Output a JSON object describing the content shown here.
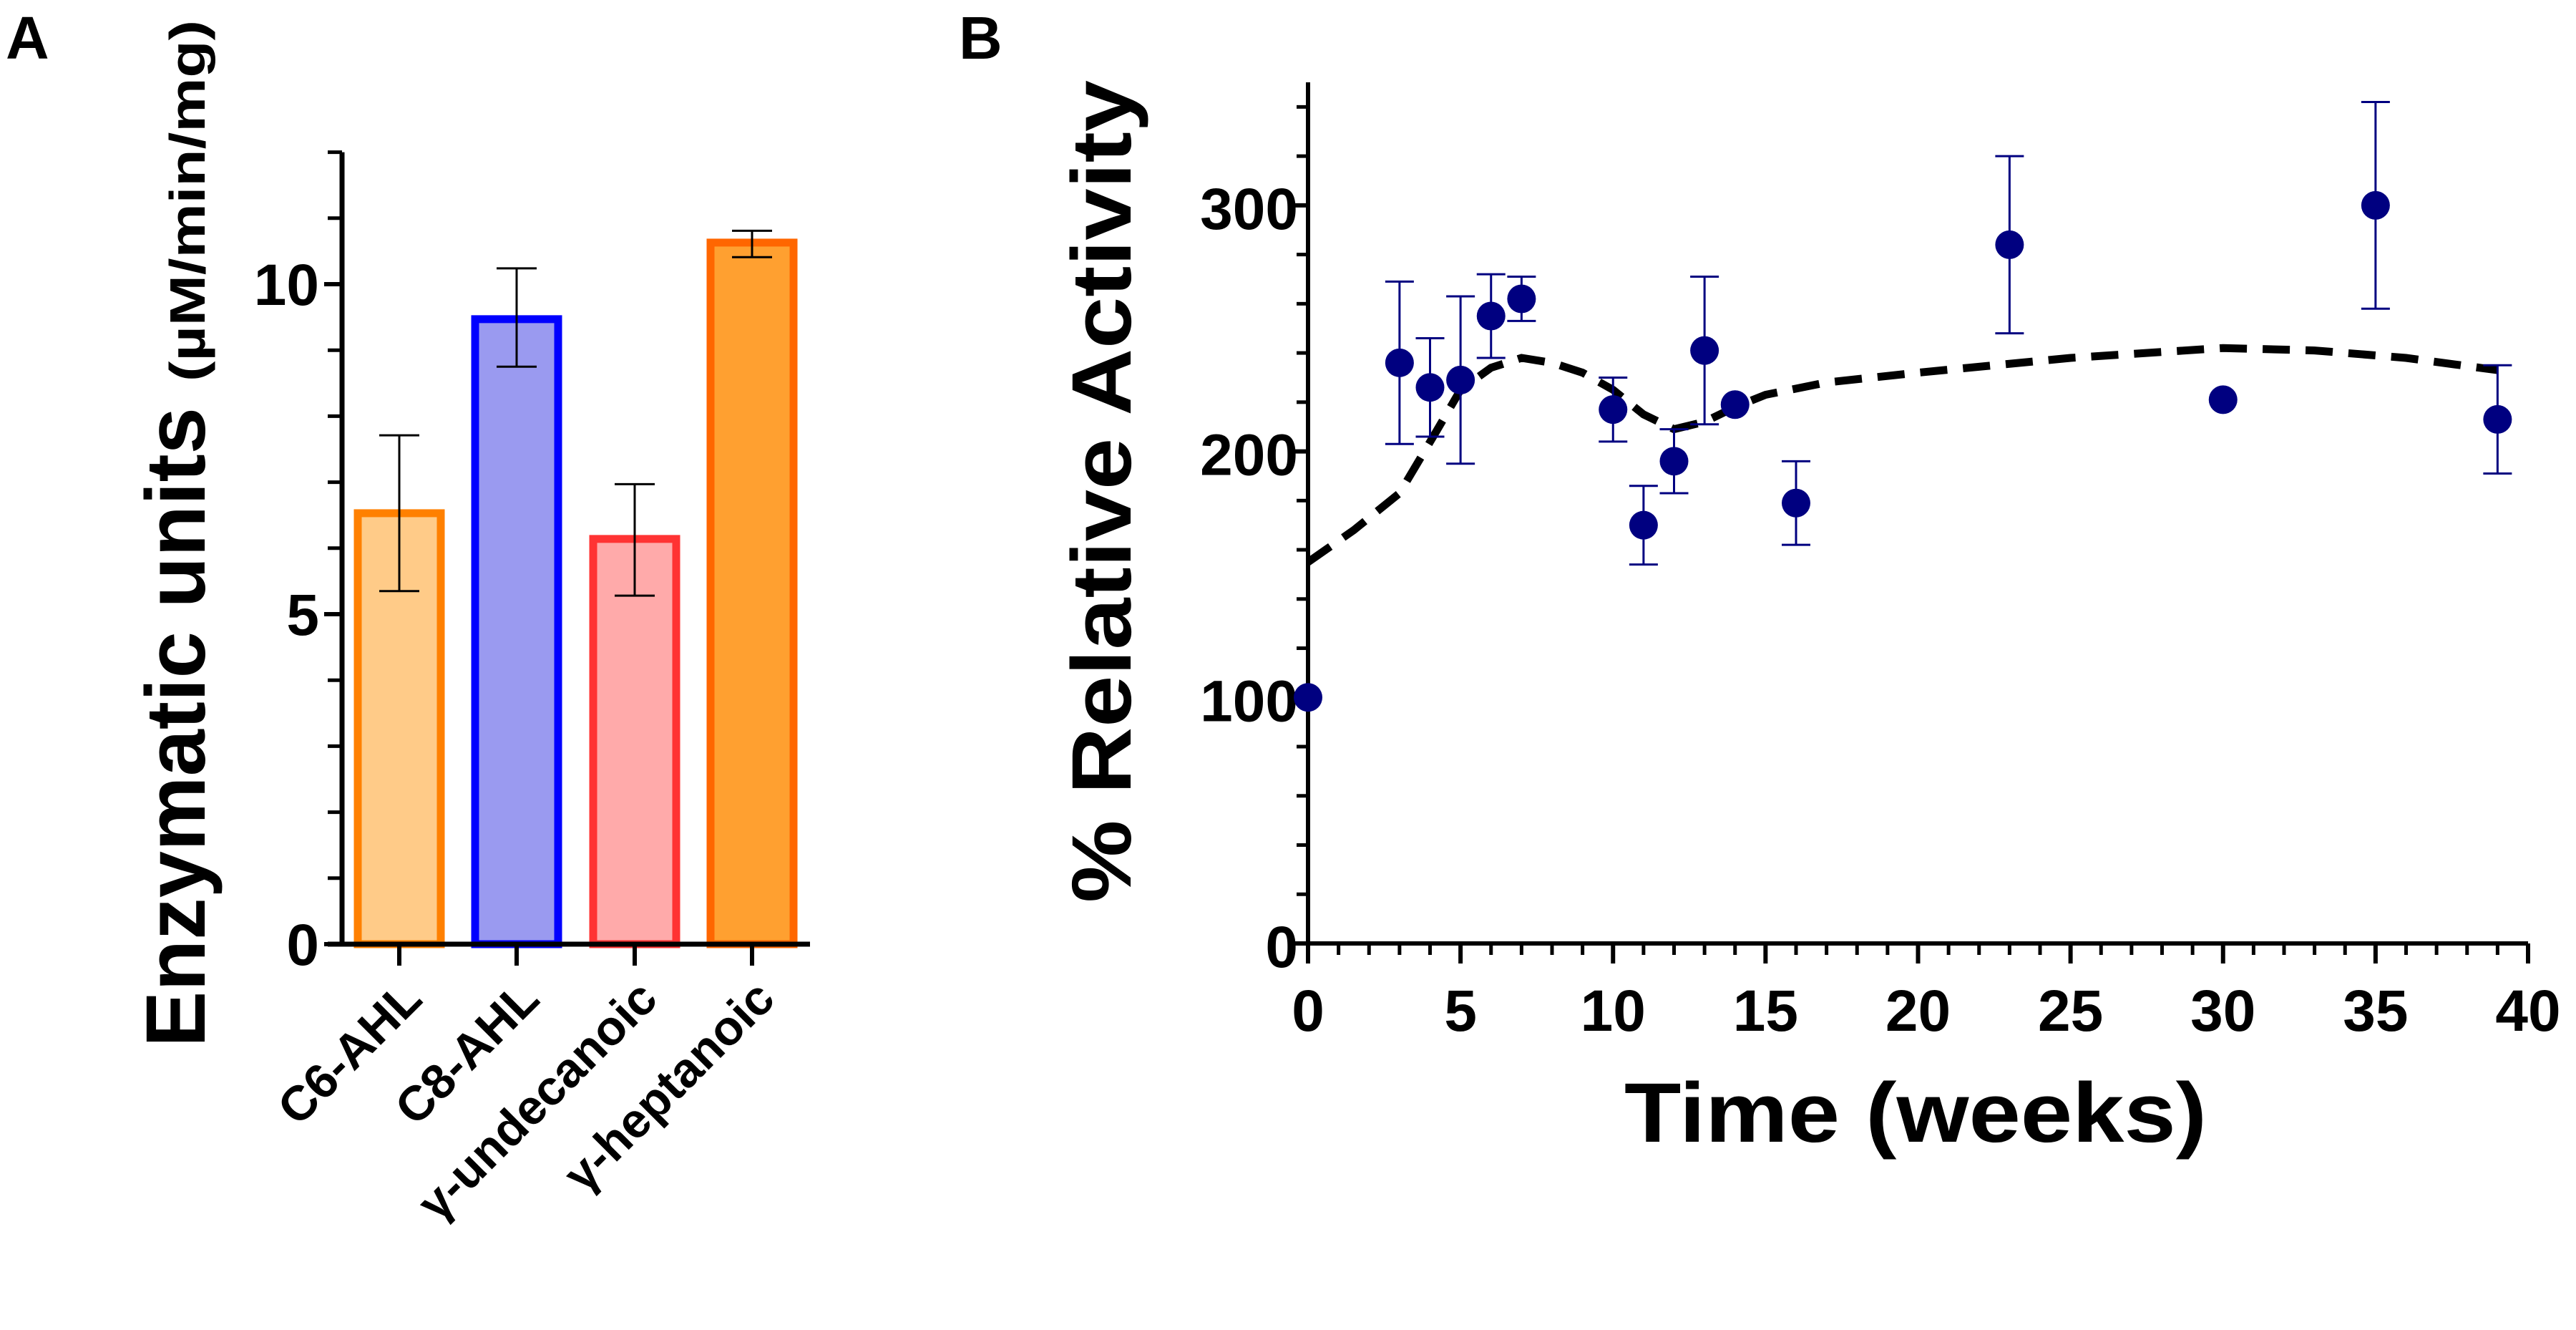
{
  "panels": {
    "a": "A",
    "b": "B"
  },
  "colors": {
    "axis": "#000000",
    "points": "#000080",
    "fit": "#000000"
  },
  "chart_data": [
    {
      "type": "bar",
      "title": "",
      "ylabel": "Enzymatic units",
      "ylabel_unit": "(µM/min/mg)",
      "xlabel": "",
      "ylim": [
        0,
        12
      ],
      "yticks": [
        "0",
        "5",
        "10"
      ],
      "yticks_values": [
        0,
        5,
        10
      ],
      "categories": [
        "C6-AHL",
        "C8-AHL",
        "γ-undecanoic",
        "γ-heptanoic"
      ],
      "values": [
        6.53,
        9.47,
        6.14,
        10.63
      ],
      "error_low": [
        5.35,
        8.75,
        5.28,
        10.41
      ],
      "error_high": [
        7.71,
        10.24,
        6.97,
        10.81
      ],
      "bar_stroke": [
        "#ff8000",
        "#0000ff",
        "#ff3333",
        "#ff6600"
      ],
      "bar_fill": [
        "#ffcb88",
        "#9a9af0",
        "#ffaaaa",
        "#ffa030"
      ]
    },
    {
      "type": "scatter",
      "title": "",
      "xlabel": "Time  (weeks)",
      "ylabel": "% Relative Activity",
      "xlim": [
        0,
        40
      ],
      "ylim": [
        0,
        350
      ],
      "xticks": [
        "0",
        "5",
        "10",
        "15",
        "20",
        "25",
        "30",
        "35",
        "40"
      ],
      "xticks_values": [
        0,
        5,
        10,
        15,
        20,
        25,
        30,
        35,
        40
      ],
      "yticks": [
        "0",
        "100",
        "200",
        "300"
      ],
      "yticks_values": [
        0,
        100,
        200,
        300
      ],
      "points": [
        {
          "x": 0,
          "y": 100,
          "err": 0
        },
        {
          "x": 3,
          "y": 236,
          "err": 33
        },
        {
          "x": 4,
          "y": 226,
          "err": 20
        },
        {
          "x": 5,
          "y": 229,
          "err": 34
        },
        {
          "x": 6,
          "y": 255,
          "err": 17
        },
        {
          "x": 7,
          "y": 262,
          "err": 9
        },
        {
          "x": 10,
          "y": 217,
          "err": 13
        },
        {
          "x": 11,
          "y": 170,
          "err": 16
        },
        {
          "x": 12,
          "y": 196,
          "err": 13
        },
        {
          "x": 13,
          "y": 241,
          "err": 30
        },
        {
          "x": 14,
          "y": 219,
          "err": 0
        },
        {
          "x": 16,
          "y": 179,
          "err": 17
        },
        {
          "x": 23,
          "y": 284,
          "err": 36
        },
        {
          "x": 30,
          "y": 221,
          "err": 0
        },
        {
          "x": 35,
          "y": 300,
          "err": 42
        },
        {
          "x": 39,
          "y": 213,
          "err": 22
        }
      ],
      "fit_curve": {
        "style": "dashed",
        "x": [
          0,
          1.5,
          3,
          4.2,
          5,
          6,
          7,
          8,
          9,
          10,
          11,
          12,
          13,
          14,
          15,
          17,
          20,
          25,
          30,
          33,
          36,
          39
        ],
        "y": [
          155,
          168,
          183,
          208,
          225,
          234,
          238,
          236,
          232,
          225,
          215,
          209,
          212,
          218,
          223,
          228,
          232,
          238,
          242,
          241,
          238,
          233
        ]
      }
    }
  ]
}
